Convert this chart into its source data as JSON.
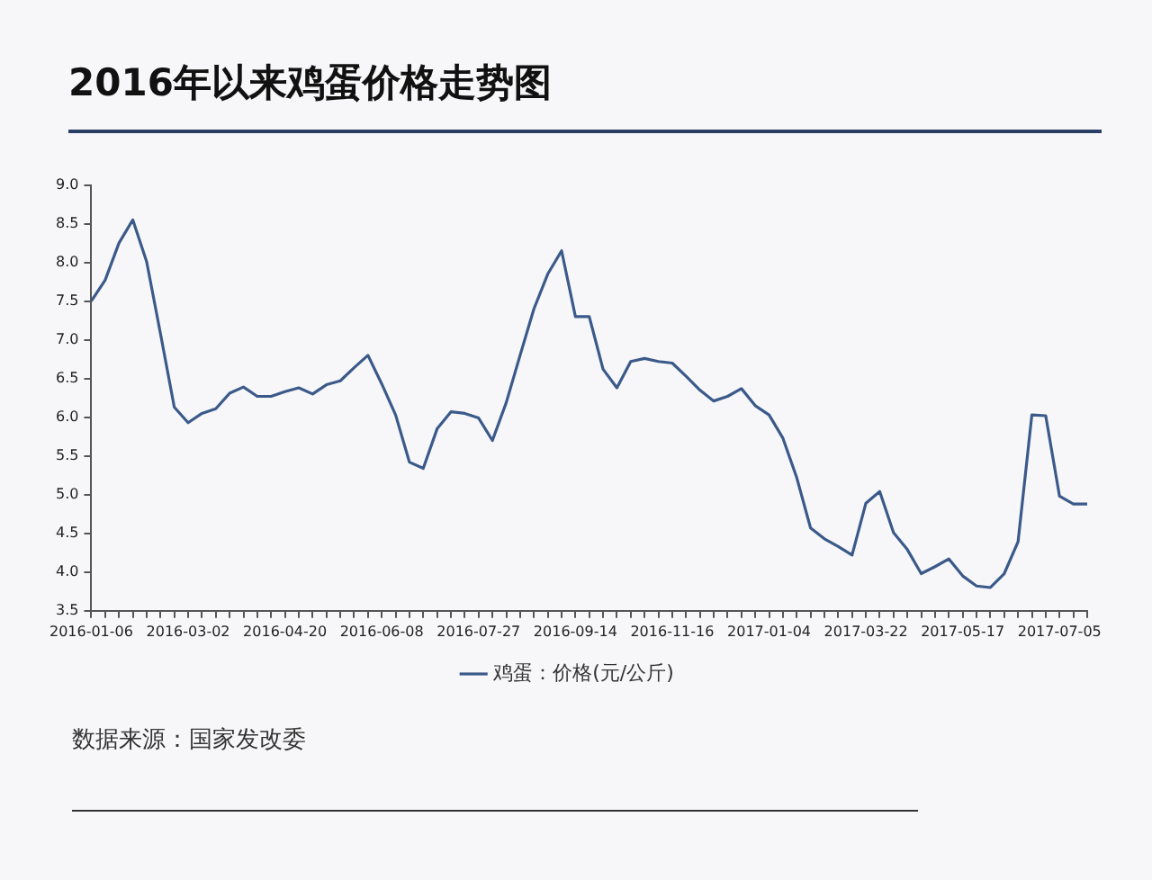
{
  "chart_data": {
    "type": "line",
    "title": "2016年以来鸡蛋价格走势图",
    "categories": [
      "2016-01-06",
      null,
      null,
      null,
      null,
      null,
      null,
      "2016-03-02",
      null,
      null,
      null,
      null,
      null,
      null,
      "2016-04-20",
      null,
      null,
      null,
      null,
      null,
      null,
      "2016-06-08",
      null,
      null,
      null,
      null,
      null,
      null,
      "2016-07-27",
      null,
      null,
      null,
      null,
      null,
      null,
      "2016-09-14",
      null,
      null,
      null,
      null,
      null,
      null,
      "2016-11-16",
      null,
      null,
      null,
      null,
      null,
      null,
      "2017-01-04",
      null,
      null,
      null,
      null,
      null,
      null,
      "2017-03-22",
      null,
      null,
      null,
      null,
      null,
      null,
      "2017-05-17",
      null,
      null,
      null,
      null,
      null,
      null,
      "2017-07-05",
      null,
      null
    ],
    "series": [
      {
        "name": "鸡蛋：价格(元/公斤)",
        "color": "#3b5a8a",
        "values": [
          7.5,
          7.77,
          8.25,
          8.55,
          8.01,
          7.08,
          6.13,
          5.93,
          6.05,
          6.11,
          6.31,
          6.39,
          6.27,
          6.27,
          6.33,
          6.38,
          6.3,
          6.42,
          6.47,
          6.64,
          6.8,
          6.43,
          6.03,
          5.42,
          5.34,
          5.85,
          6.07,
          6.05,
          5.99,
          5.7,
          6.19,
          6.8,
          7.4,
          7.85,
          8.15,
          7.3,
          7.3,
          6.62,
          6.38,
          6.72,
          6.76,
          6.72,
          6.7,
          6.53,
          6.35,
          6.21,
          6.27,
          6.37,
          6.15,
          6.03,
          5.73,
          5.22,
          4.57,
          4.43,
          4.33,
          4.22,
          4.89,
          5.04,
          4.51,
          4.29,
          3.98,
          4.07,
          4.17,
          3.95,
          3.82,
          3.8,
          3.98,
          4.39,
          6.03,
          6.02,
          4.98,
          4.88,
          4.88
        ]
      }
    ],
    "ylim": [
      3.5,
      9
    ],
    "yticks": [
      {
        "value": 3.5,
        "label": "3.5"
      },
      {
        "value": 4,
        "label": "4.0"
      },
      {
        "value": 4.5,
        "label": "4.5"
      },
      {
        "value": 5,
        "label": "5.0"
      },
      {
        "value": 5.5,
        "label": "5.5"
      },
      {
        "value": 6,
        "label": "6.0"
      },
      {
        "value": 6.5,
        "label": "6.5"
      },
      {
        "value": 7,
        "label": "7.0"
      },
      {
        "value": 7.5,
        "label": "7.5"
      },
      {
        "value": 8,
        "label": "8.0"
      },
      {
        "value": 8.5,
        "label": "8.5"
      },
      {
        "value": 9,
        "label": "9.0"
      }
    ],
    "grid": false,
    "legend": "bottom",
    "marker": "none",
    "line_style": "solid",
    "annotations": [
      "数据来源：国家发改委"
    ]
  }
}
